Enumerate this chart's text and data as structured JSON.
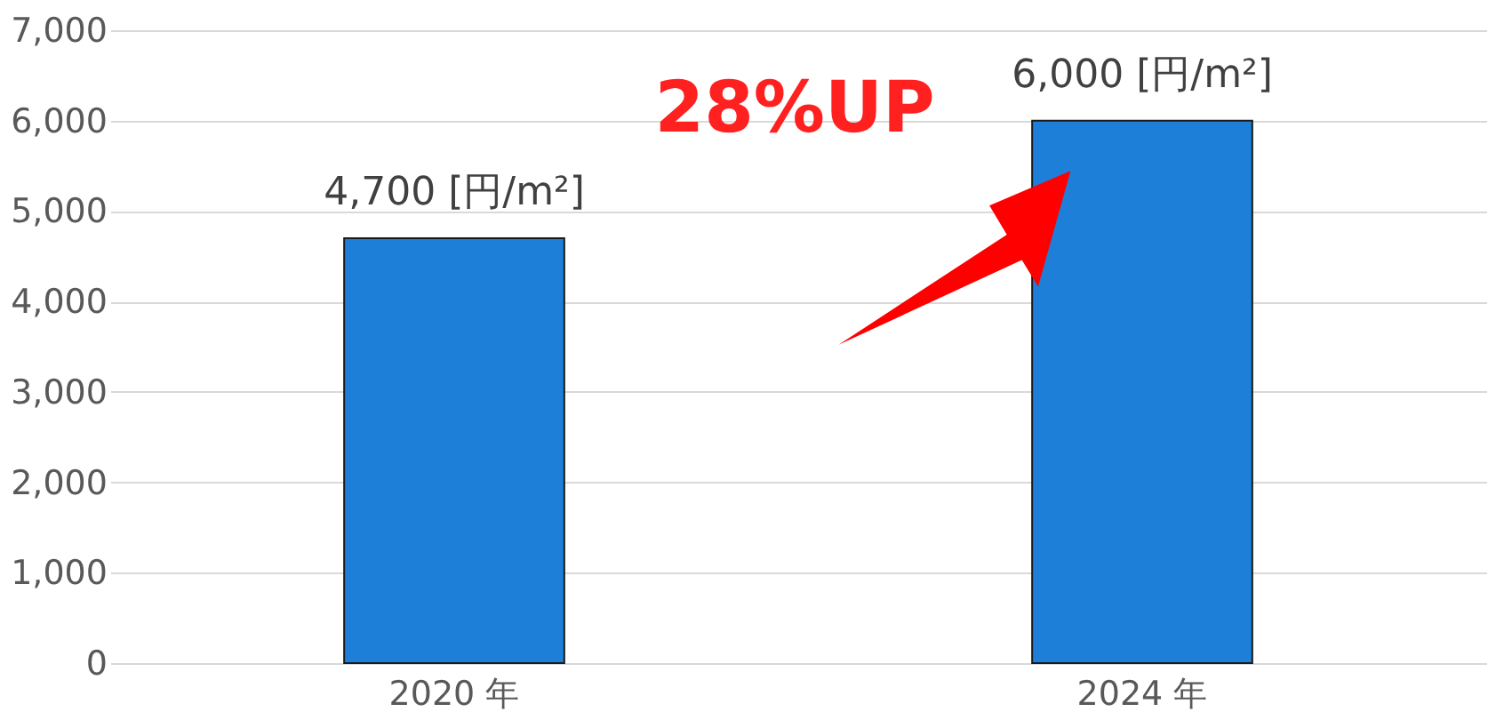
{
  "chart_data": {
    "type": "bar",
    "categories": [
      "2020 年",
      "2024 年"
    ],
    "values": [
      4700,
      6000
    ],
    "color": "#1e7fd8",
    "value_labels": [
      "4,700 [円/m²]",
      "6,000 [円/m²]"
    ],
    "ylim": [
      0,
      7000
    ],
    "yticks": [
      0,
      {
        "value": 1000,
        "label": "1,000"
      },
      {
        "value": 2000,
        "label": "2,000"
      },
      {
        "value": 3000,
        "label": "3,000"
      },
      {
        "value": 4000,
        "label": "4,000"
      },
      {
        "value": 5000,
        "label": "5,000"
      },
      {
        "value": 6000,
        "label": "6,000"
      },
      {
        "value": 7000,
        "label": "7,000"
      }
    ],
    "grid": "y",
    "annotations": [
      "28%UP"
    ]
  }
}
